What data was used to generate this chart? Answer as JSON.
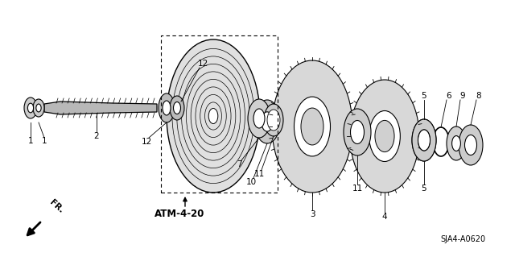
{
  "bg_color": "#ffffff",
  "line_color": "#000000",
  "fig_width": 6.4,
  "fig_height": 3.19,
  "title_code": "SJA4-A0620",
  "ref_label": "ATM-4-20",
  "fr_label": "FR."
}
